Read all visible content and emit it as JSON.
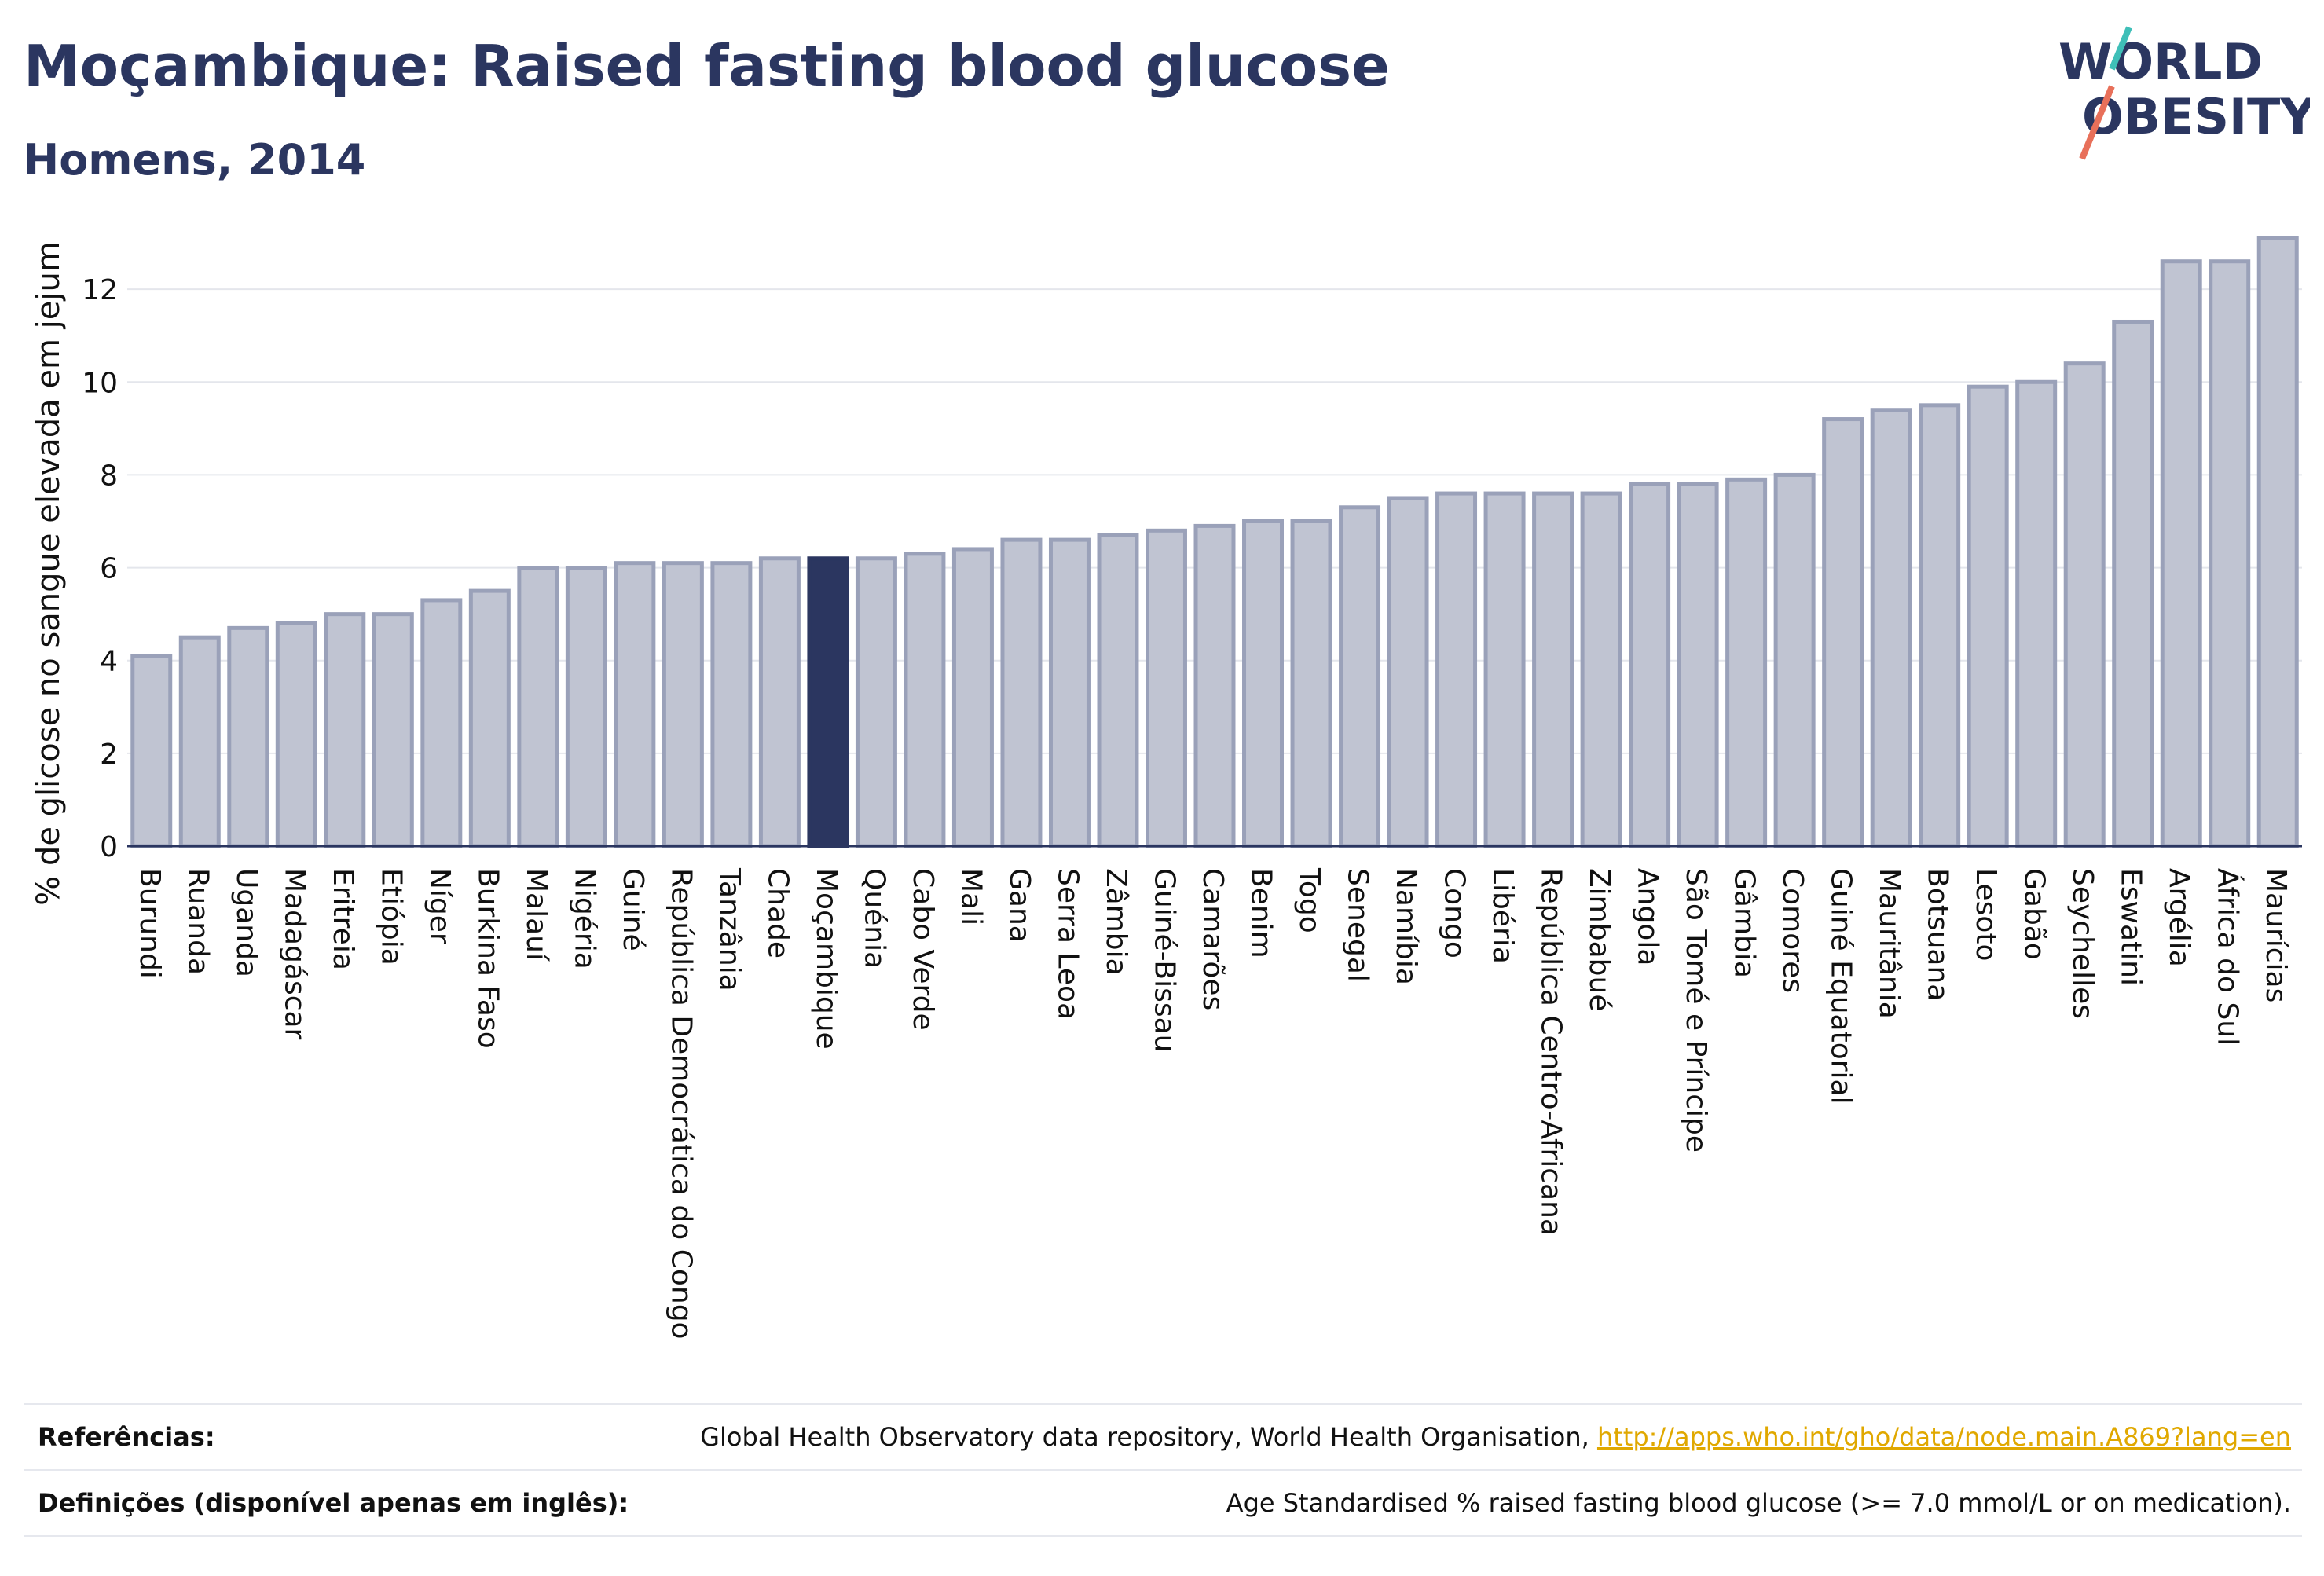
{
  "title": "Moçambique: Raised fasting blood glucose",
  "subtitle": "Homens, 2014",
  "logo": {
    "line1": "WORLD",
    "line2": "OBESITY"
  },
  "colors": {
    "bar": "#c0c4d2",
    "bar_stroke": "#9aa1b9",
    "highlight": "#2b3660",
    "text": "#2b3660"
  },
  "chart_data": {
    "type": "bar",
    "ylabel": "% de glicose no sangue elevada em jejum",
    "xlabel": "",
    "ylim": [
      0,
      14
    ],
    "yticks": [
      0,
      2,
      4,
      6,
      8,
      10,
      12
    ],
    "grid": true,
    "highlight": "Moçambique",
    "categories": [
      "Burundi",
      "Ruanda",
      "Uganda",
      "Madagáscar",
      "Eritreia",
      "Etiópia",
      "Níger",
      "Burkina Faso",
      "Malauí",
      "Nigéria",
      "Guiné",
      "República Democrática do Congo",
      "Tanzânia",
      "Chade",
      "Moçambique",
      "Quénia",
      "Cabo Verde",
      "Mali",
      "Gana",
      "Serra Leoa",
      "Zâmbia",
      "Guiné-Bissau",
      "Camarões",
      "Benim",
      "Togo",
      "Senegal",
      "Namíbia",
      "Congo",
      "Libéria",
      "República Centro-Africana",
      "Zimbabué",
      "Angola",
      "São Tomé e Príncipe",
      "Gâmbia",
      "Comores",
      "Guiné Equatorial",
      "Mauritânia",
      "Botsuana",
      "Lesoto",
      "Gabão",
      "Seychelles",
      "Eswatini",
      "Argélia",
      "África do Sul",
      "Maurícias"
    ],
    "values": [
      4.1,
      4.5,
      4.7,
      4.8,
      5.0,
      5.0,
      5.3,
      5.5,
      6.0,
      6.0,
      6.1,
      6.1,
      6.1,
      6.2,
      6.2,
      6.2,
      6.3,
      6.4,
      6.6,
      6.6,
      6.7,
      6.8,
      6.9,
      7.0,
      7.0,
      7.3,
      7.5,
      7.6,
      7.6,
      7.6,
      7.6,
      7.8,
      7.8,
      7.9,
      8.0,
      9.2,
      9.4,
      9.5,
      9.9,
      10.0,
      10.4,
      11.3,
      12.6,
      12.6,
      13.1
    ]
  },
  "footer": {
    "references_label": "Referências:",
    "references_text": "Global Health Observatory data repository, World Health Organisation, ",
    "references_link": "http://apps.who.int/gho/data/node.main.A869?lang=en",
    "definitions_label": "Definições (disponível apenas em inglês):",
    "definitions_text": "Age Standardised % raised fasting blood glucose (>= 7.0 mmol/L or on medication)."
  }
}
